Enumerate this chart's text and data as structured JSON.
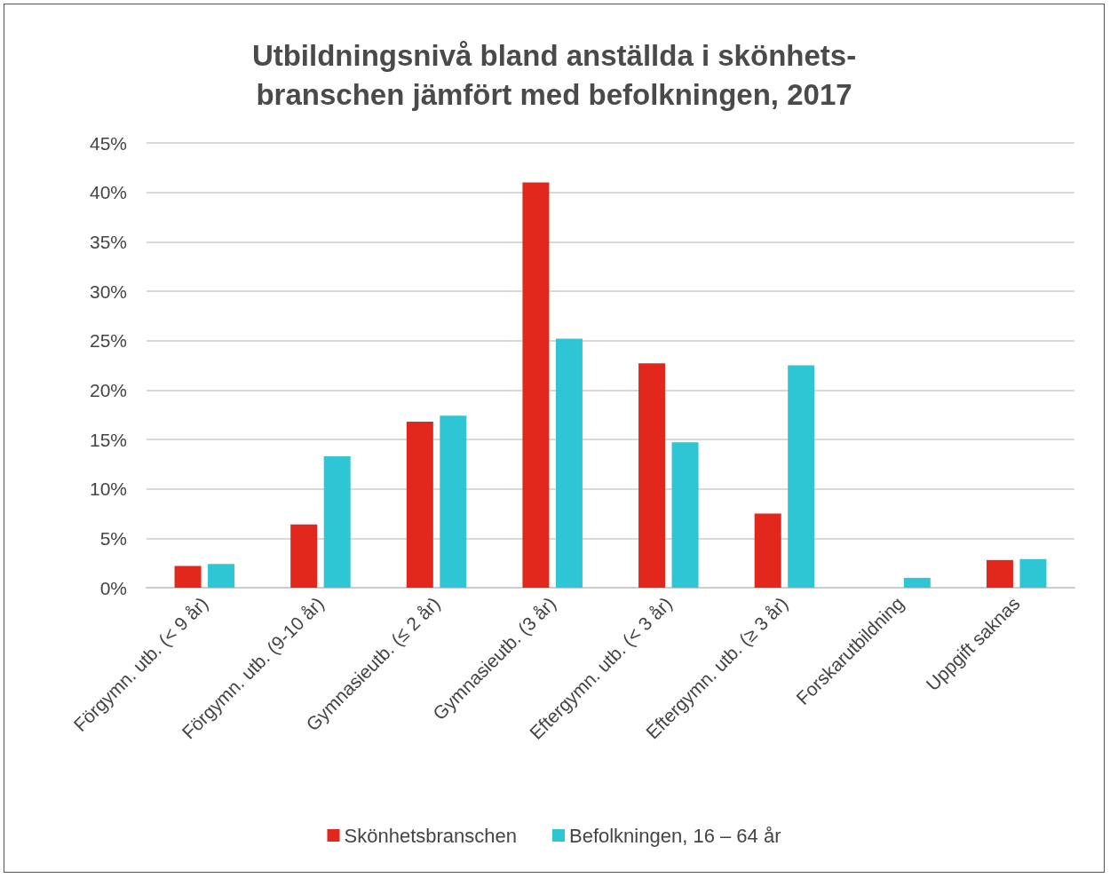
{
  "chart_data": {
    "type": "bar",
    "title": "Utbildningsnivå bland anställda i skönhets-\nbranschen jämfört med befolkningen, 2017",
    "categories": [
      "Förgymn. utb. (< 9 år)",
      "Förgymn. utb. (9-10 år)",
      "Gymnasieutb. (≤ 2 år)",
      "Gymnasieutb. (3 år)",
      "Eftergymn. utb. (< 3 år)",
      "Eftergymn. utb. (≥ 3 år)",
      "Forskarutbildning",
      "Uppgift saknas"
    ],
    "series": [
      {
        "name": "Skönhetsbranschen",
        "color": "#e2271c",
        "values": [
          2.2,
          6.4,
          16.8,
          41.0,
          22.7,
          7.5,
          0,
          2.8
        ]
      },
      {
        "name": "Befolkningen, 16 – 64 år",
        "color": "#2ec5d5",
        "values": [
          2.4,
          13.3,
          17.4,
          25.2,
          14.7,
          22.5,
          1.0,
          2.9
        ]
      }
    ],
    "ylim": [
      0,
      45
    ],
    "yticks": [
      {
        "value": 0,
        "label": "0%"
      },
      {
        "value": 5,
        "label": "5%"
      },
      {
        "value": 10,
        "label": "10%"
      },
      {
        "value": 15,
        "label": "15%"
      },
      {
        "value": 20,
        "label": "20%"
      },
      {
        "value": 25,
        "label": "25%"
      },
      {
        "value": 30,
        "label": "30%"
      },
      {
        "value": 35,
        "label": "35%"
      },
      {
        "value": 40,
        "label": "40%"
      },
      {
        "value": 45,
        "label": "45%"
      }
    ],
    "grid": "y",
    "legend": "bottom"
  }
}
